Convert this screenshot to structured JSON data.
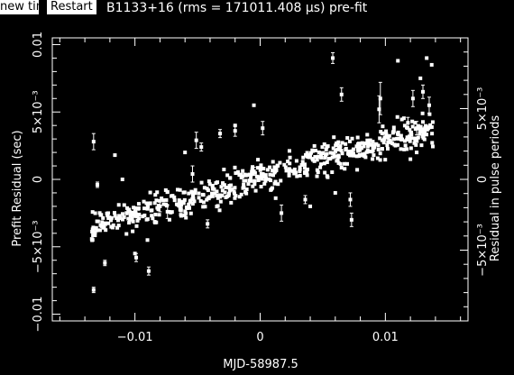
{
  "toolbar": {
    "new_tim_label": "new tim",
    "restart_label": "Restart"
  },
  "colors": {
    "background": "#000000",
    "foreground": "#ffffff"
  },
  "chart_data": {
    "type": "scatter",
    "title": "B1133+16 (rms = 171011.408 μs) pre-fit",
    "xlabel": "MJD-58987.5",
    "ylabel": "Prefit Residual (sec)",
    "y2label": "Residual in pulse periods",
    "xlim": [
      -0.0166,
      0.0166
    ],
    "ylim": [
      -0.0105,
      0.0105
    ],
    "y2lim": [
      -0.01,
      0.01
    ],
    "x_ticks": [
      {
        "value": -0.01,
        "label": "−0.01"
      },
      {
        "value": 0,
        "label": "0"
      },
      {
        "value": 0.01,
        "label": "0.01"
      }
    ],
    "y_ticks": [
      {
        "value": -0.01,
        "label": "−0.01"
      },
      {
        "value": -0.005,
        "label": "−5×10⁻³"
      },
      {
        "value": 0,
        "label": "0"
      },
      {
        "value": 0.005,
        "label": "5×10⁻³"
      },
      {
        "value": 0.01,
        "label": "0.01"
      }
    ],
    "y2_ticks": [
      {
        "value": -0.005,
        "label": "−5×10⁻³"
      },
      {
        "value": 0,
        "label": "0"
      },
      {
        "value": 0.005,
        "label": "5×10⁻³"
      }
    ],
    "grid": false,
    "legend": "none",
    "series": [
      {
        "trend": {
          "x": [
            -0.0135,
            0.0138
          ],
          "y": [
            -0.0035,
            0.0038
          ]
        },
        "n_points": 620,
        "points": [
          {
            "x": -0.0133,
            "y": 0.0028,
            "err": 0.0006
          },
          {
            "x": -0.013,
            "y": -0.0004,
            "err": 0.0002
          },
          {
            "x": -0.0116,
            "y": 0.0018,
            "err": 0
          },
          {
            "x": -0.011,
            "y": 0.0,
            "err": 0
          },
          {
            "x": -0.0133,
            "y": -0.0082,
            "err": 0.0002
          },
          {
            "x": -0.0124,
            "y": -0.0062,
            "err": 0.0002
          },
          {
            "x": -0.0099,
            "y": -0.0058,
            "err": 0.0003
          },
          {
            "x": -0.0089,
            "y": -0.0068,
            "err": 0.0003
          },
          {
            "x": -0.008,
            "y": -0.002,
            "err": 0.0004
          },
          {
            "x": -0.0074,
            "y": -0.0024,
            "err": 0.0005
          },
          {
            "x": -0.0054,
            "y": 0.0004,
            "err": 0.0006
          },
          {
            "x": -0.0051,
            "y": 0.0029,
            "err": 0.0006
          },
          {
            "x": -0.0047,
            "y": 0.0024,
            "err": 0.0003
          },
          {
            "x": -0.0042,
            "y": -0.0033,
            "err": 0.0003
          },
          {
            "x": -0.0032,
            "y": 0.0034,
            "err": 0.0003
          },
          {
            "x": -0.002,
            "y": 0.0036,
            "err": 0.0004
          },
          {
            "x": -0.0005,
            "y": 0.0006,
            "err": 0.0003
          },
          {
            "x": 0.0002,
            "y": 0.0038,
            "err": 0.0005
          },
          {
            "x": 0.0017,
            "y": -0.0025,
            "err": 0.0006
          },
          {
            "x": 0.0036,
            "y": -0.0015,
            "err": 0.0003
          },
          {
            "x": 0.0058,
            "y": 0.009,
            "err": 0.0004
          },
          {
            "x": 0.0065,
            "y": 0.0063,
            "err": 0.0005
          },
          {
            "x": 0.0072,
            "y": -0.0015,
            "err": 0.0005
          },
          {
            "x": 0.0073,
            "y": -0.003,
            "err": 0.0005
          },
          {
            "x": 0.0095,
            "y": 0.0052,
            "err": 0.001
          },
          {
            "x": 0.0096,
            "y": 0.006,
            "err": 0.0012
          },
          {
            "x": 0.0118,
            "y": 0.0042,
            "err": 0.0004
          },
          {
            "x": 0.0122,
            "y": 0.006,
            "err": 0.0006
          },
          {
            "x": 0.0125,
            "y": 0.0038,
            "err": 0.0005
          },
          {
            "x": 0.013,
            "y": 0.0065,
            "err": 0.0005
          },
          {
            "x": 0.0135,
            "y": 0.0055,
            "err": 0.0006
          },
          {
            "x": 0.0133,
            "y": 0.009,
            "err": 0
          },
          {
            "x": 0.0137,
            "y": 0.0085,
            "err": 0
          },
          {
            "x": 0.011,
            "y": 0.0088,
            "err": 0
          },
          {
            "x": 0.0128,
            "y": 0.0075,
            "err": 0
          },
          {
            "x": 0.0125,
            "y": 0.002,
            "err": 0
          },
          {
            "x": 0.012,
            "y": 0.0015,
            "err": 0
          },
          {
            "x": 0.009,
            "y": 0.0028,
            "err": 0
          },
          {
            "x": -0.0005,
            "y": 0.0055,
            "err": 0
          },
          {
            "x": -0.002,
            "y": 0.004,
            "err": 0
          },
          {
            "x": -0.006,
            "y": 0.002,
            "err": 0
          },
          {
            "x": -0.009,
            "y": -0.0045,
            "err": 0
          },
          {
            "x": -0.01,
            "y": -0.0055,
            "err": 0
          },
          {
            "x": 0.004,
            "y": -0.002,
            "err": 0
          },
          {
            "x": 0.006,
            "y": -0.001,
            "err": 0
          }
        ]
      }
    ]
  }
}
